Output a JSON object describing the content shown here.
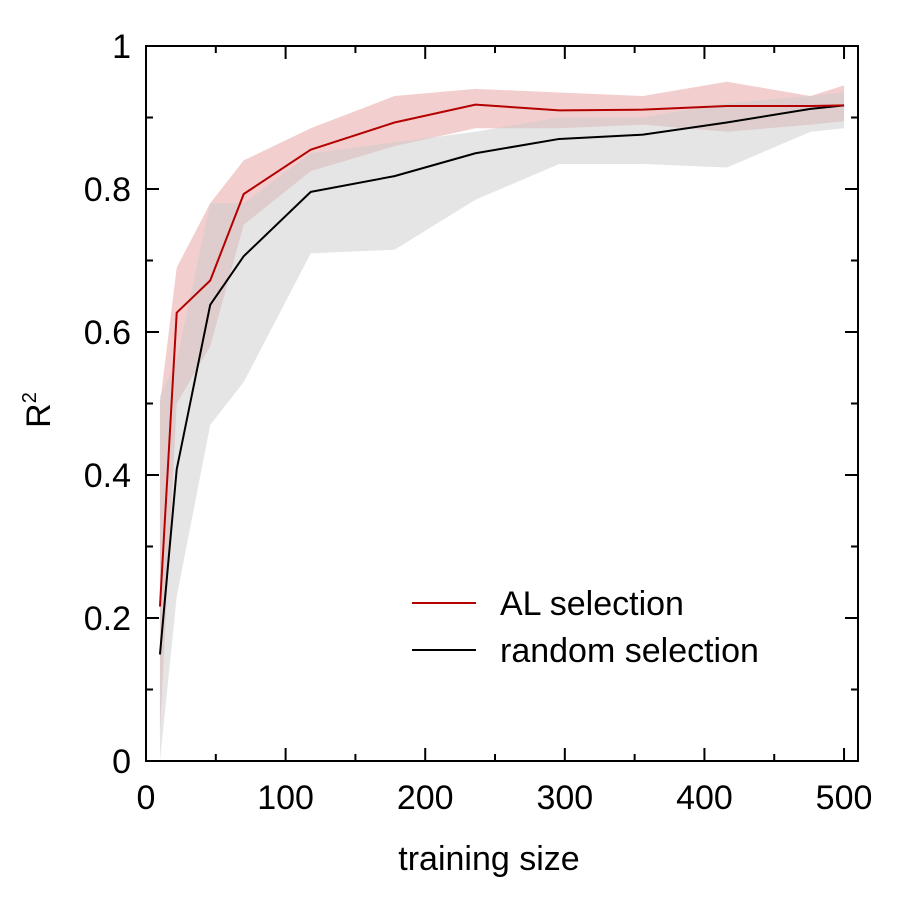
{
  "chart_data": {
    "type": "line",
    "xlabel": "training size",
    "ylabel_main": "R",
    "ylabel_sup": "2",
    "xlim": [
      0,
      510
    ],
    "ylim": [
      0,
      1
    ],
    "xticks_major": [
      0,
      100,
      200,
      300,
      400,
      500
    ],
    "xtick_labels": [
      "0",
      "100",
      "200",
      "300",
      "400",
      "500"
    ],
    "xticks_minor": [
      50,
      150,
      250,
      350,
      450
    ],
    "yticks_major": [
      0,
      0.2,
      0.4,
      0.6,
      0.8,
      1
    ],
    "ytick_labels": [
      "0",
      "0.2",
      "0.4",
      "0.6",
      "0.8",
      "1"
    ],
    "yticks_minor": [
      0.1,
      0.3,
      0.5,
      0.7,
      0.9
    ],
    "grid": false,
    "legend_position": "bottom-right",
    "series": [
      {
        "name": "AL selection",
        "color": "#b40000",
        "band_color": "#e8a6a6",
        "x": [
          10,
          22,
          46,
          70,
          118,
          178,
          236,
          296,
          356,
          416,
          476,
          500
        ],
        "y": [
          0.216,
          0.627,
          0.672,
          0.793,
          0.855,
          0.893,
          0.918,
          0.91,
          0.911,
          0.916,
          0.916,
          0.917
        ],
        "upper": [
          0.5,
          0.69,
          0.78,
          0.84,
          0.885,
          0.93,
          0.94,
          0.935,
          0.93,
          0.95,
          0.93,
          0.945
        ],
        "lower": [
          0.04,
          0.5,
          0.58,
          0.75,
          0.825,
          0.86,
          0.885,
          0.885,
          0.89,
          0.88,
          0.89,
          0.895
        ]
      },
      {
        "name": "random selection",
        "color": "#000000",
        "band_color": "#cccccc",
        "x": [
          10,
          22,
          46,
          70,
          118,
          178,
          236,
          296,
          356,
          416,
          476,
          500
        ],
        "y": [
          0.149,
          0.408,
          0.638,
          0.706,
          0.796,
          0.818,
          0.85,
          0.87,
          0.876,
          0.893,
          0.912,
          0.917
        ],
        "upper": [
          0.51,
          0.56,
          0.78,
          0.78,
          0.85,
          0.865,
          0.88,
          0.9,
          0.9,
          0.92,
          0.93,
          0.935
        ],
        "lower": [
          0.0,
          0.23,
          0.47,
          0.53,
          0.71,
          0.715,
          0.785,
          0.835,
          0.835,
          0.83,
          0.88,
          0.885
        ]
      }
    ]
  }
}
